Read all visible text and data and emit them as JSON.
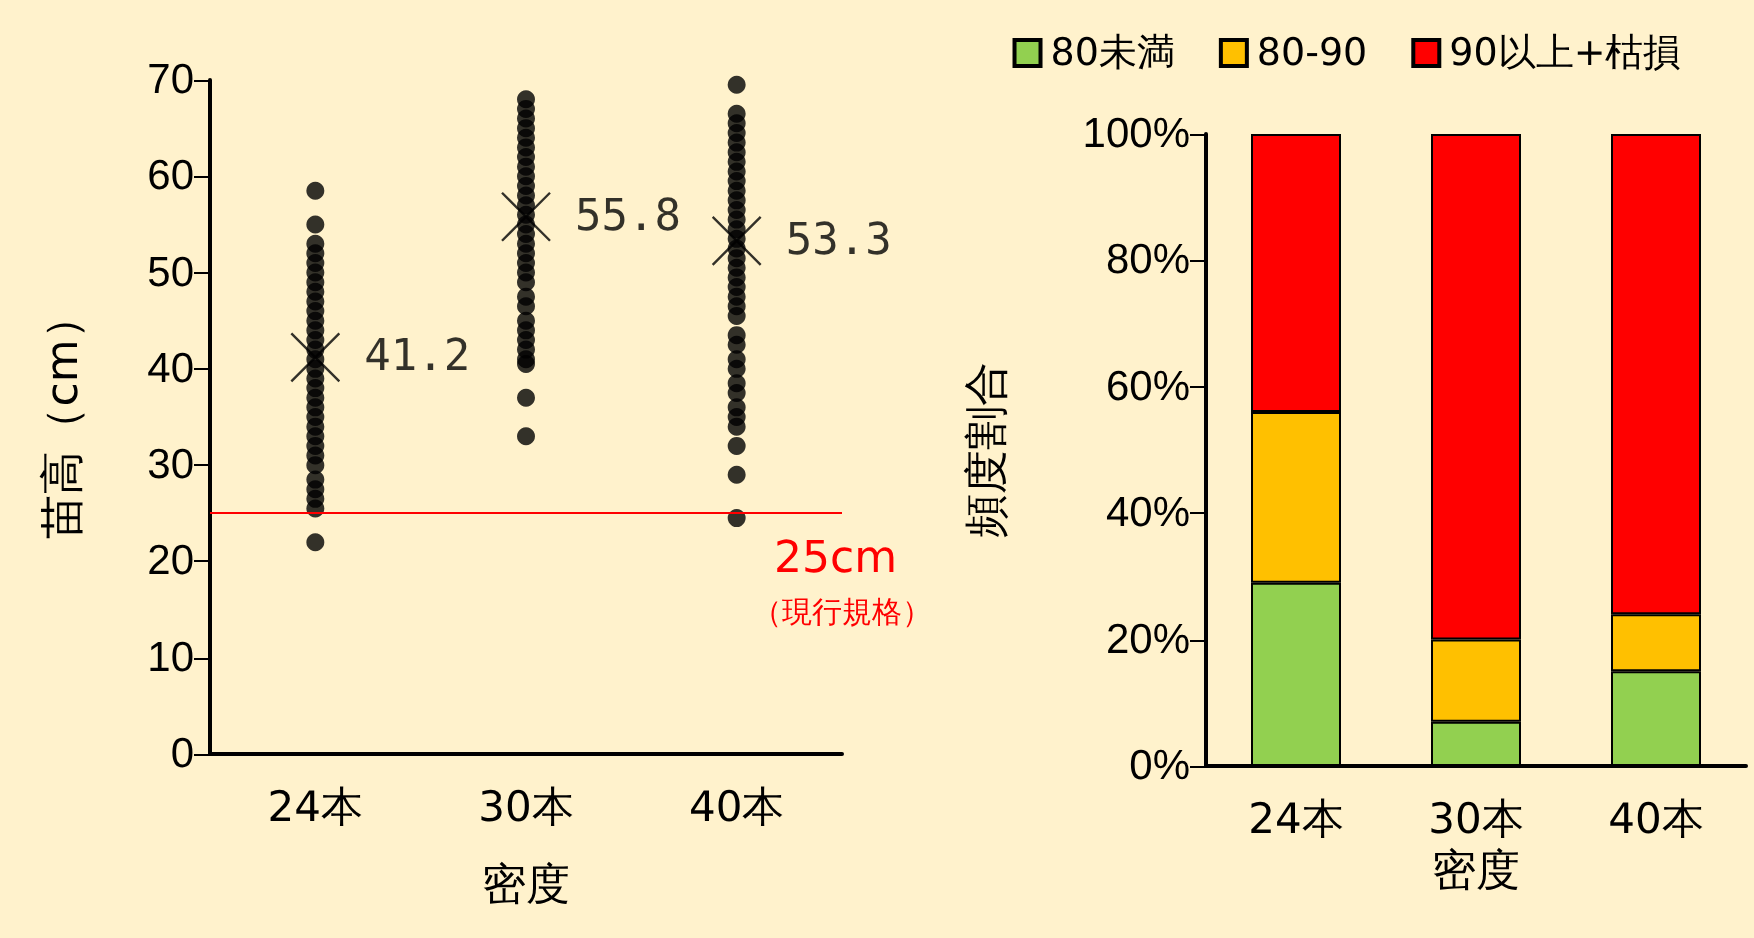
{
  "chart_data": [
    {
      "type": "scatter",
      "categories": [
        "24本",
        "30本",
        "40本"
      ],
      "xlabel": "密度",
      "ylabel": "苗高（cm）",
      "ylim": [
        0,
        70
      ],
      "yticks": [
        0,
        10,
        20,
        30,
        40,
        50,
        60,
        70
      ],
      "grid": false,
      "legend": false,
      "series": [
        {
          "color": "#000000",
          "marker": "circle",
          "x": [
            "24本",
            "24本",
            "24本",
            "24本",
            "24本",
            "24本",
            "24本",
            "24本",
            "24本",
            "24本",
            "24本",
            "24本",
            "24本",
            "24本",
            "24本",
            "24本",
            "24本",
            "24本",
            "24本",
            "24本",
            "24本",
            "24本",
            "24本",
            "24本",
            "24本",
            "24本",
            "24本",
            "24本",
            "24本",
            "24本",
            "24本",
            "30本",
            "30本",
            "30本",
            "30本",
            "30本",
            "30本",
            "30本",
            "30本",
            "30本",
            "30本",
            "30本",
            "30本",
            "30本",
            "30本",
            "30本",
            "30本",
            "30本",
            "30本",
            "30本",
            "30本",
            "30本",
            "30本",
            "30本",
            "30本",
            "30本",
            "30本",
            "30本",
            "30本",
            "30本",
            "30本",
            "40本",
            "40本",
            "40本",
            "40本",
            "40本",
            "40本",
            "40本",
            "40本",
            "40本",
            "40本",
            "40本",
            "40本",
            "40本",
            "40本",
            "40本",
            "40本",
            "40本",
            "40本",
            "40本",
            "40本",
            "40本",
            "40本",
            "40本",
            "40本",
            "40本",
            "40本",
            "40本",
            "40本",
            "40本",
            "40本",
            "40本",
            "40本",
            "40本",
            "40本",
            "40本"
          ],
          "values": [
            58.5,
            55,
            53,
            52,
            51,
            50,
            49,
            48,
            47,
            46,
            45,
            44,
            43,
            42,
            41,
            40,
            39,
            38,
            37,
            36,
            35,
            34,
            33,
            32,
            31,
            30,
            28.5,
            27.5,
            26.5,
            25.5,
            22,
            68,
            67,
            66,
            65,
            64,
            63,
            62,
            61,
            60,
            59,
            58,
            57,
            56,
            55,
            54,
            53,
            52,
            51,
            50,
            49,
            47.5,
            46.5,
            45,
            44,
            43,
            42,
            41,
            40.5,
            37,
            33,
            69.5,
            66.5,
            65.5,
            64.5,
            63.5,
            62.5,
            61.5,
            60.5,
            59.5,
            58.5,
            57.5,
            56.5,
            55.5,
            54.5,
            53.5,
            52.5,
            51.5,
            50.5,
            49.5,
            48.5,
            47.5,
            46.5,
            45.5,
            43.5,
            42.5,
            41,
            40,
            38.5,
            37.5,
            36,
            35,
            34,
            32,
            29,
            24.5
          ]
        },
        {
          "color": "#000000",
          "marker": "cross",
          "x": [
            "24本",
            "30本",
            "40本"
          ],
          "values": [
            41.2,
            55.8,
            53.3
          ],
          "value_labels": [
            "41.2",
            "55.8",
            "53.3"
          ]
        }
      ],
      "ref_lines": [
        {
          "axis": "y",
          "value": 25,
          "label": "25cm",
          "color": "#ff0000"
        }
      ],
      "annotations": [
        "（現行規格）"
      ]
    },
    {
      "type": "bar",
      "stacked": true,
      "categories": [
        "24本",
        "30本",
        "40本"
      ],
      "xlabel": "密度",
      "ylabel": "頻度割合",
      "ylim": [
        0,
        100
      ],
      "yticks": [
        {
          "value": 0,
          "label": "0%"
        },
        {
          "value": 20,
          "label": "20%"
        },
        {
          "value": 40,
          "label": "40%"
        },
        {
          "value": 60,
          "label": "60%"
        },
        {
          "value": 80,
          "label": "80%"
        },
        {
          "value": 100,
          "label": "100%"
        }
      ],
      "grid": false,
      "legend": "top",
      "series": [
        {
          "name": "80未満",
          "color": "#92d050",
          "values": [
            29,
            7,
            15
          ]
        },
        {
          "name": "80-90",
          "color": "#ffc000",
          "values": [
            27,
            13,
            9
          ]
        },
        {
          "name": "90以上+枯損",
          "color": "#ff0000",
          "values": [
            44,
            80,
            76
          ]
        }
      ]
    }
  ]
}
